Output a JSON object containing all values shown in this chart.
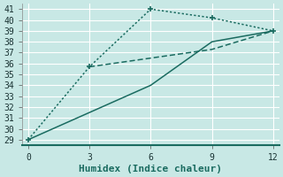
{
  "xlabel": "Humidex (Indice chaleur)",
  "bg_color": "#c8e8e5",
  "grid_color": "#ffffff",
  "line_color": "#1a6b60",
  "lines": [
    {
      "x": [
        0,
        3,
        6,
        9,
        12
      ],
      "y": [
        29,
        35.7,
        41,
        40.2,
        39
      ],
      "style": "dotted",
      "marker": "+",
      "ms": 5
    },
    {
      "x": [
        3,
        6,
        9,
        12
      ],
      "y": [
        35.7,
        36.5,
        37.3,
        39
      ],
      "style": "dashed",
      "marker": null,
      "ms": 0
    },
    {
      "x": [
        0,
        3,
        6,
        9,
        12
      ],
      "y": [
        29,
        31.5,
        34,
        38,
        39
      ],
      "style": "solid",
      "marker": null,
      "ms": 0
    }
  ],
  "xlim": [
    -0.3,
    12.3
  ],
  "ylim": [
    28.5,
    41.5
  ],
  "xticks": [
    0,
    3,
    6,
    9,
    12
  ],
  "yticks": [
    29,
    30,
    31,
    32,
    33,
    34,
    35,
    36,
    37,
    38,
    39,
    40,
    41
  ],
  "xlabel_fontsize": 8,
  "tick_fontsize": 7,
  "lw": 1.1
}
